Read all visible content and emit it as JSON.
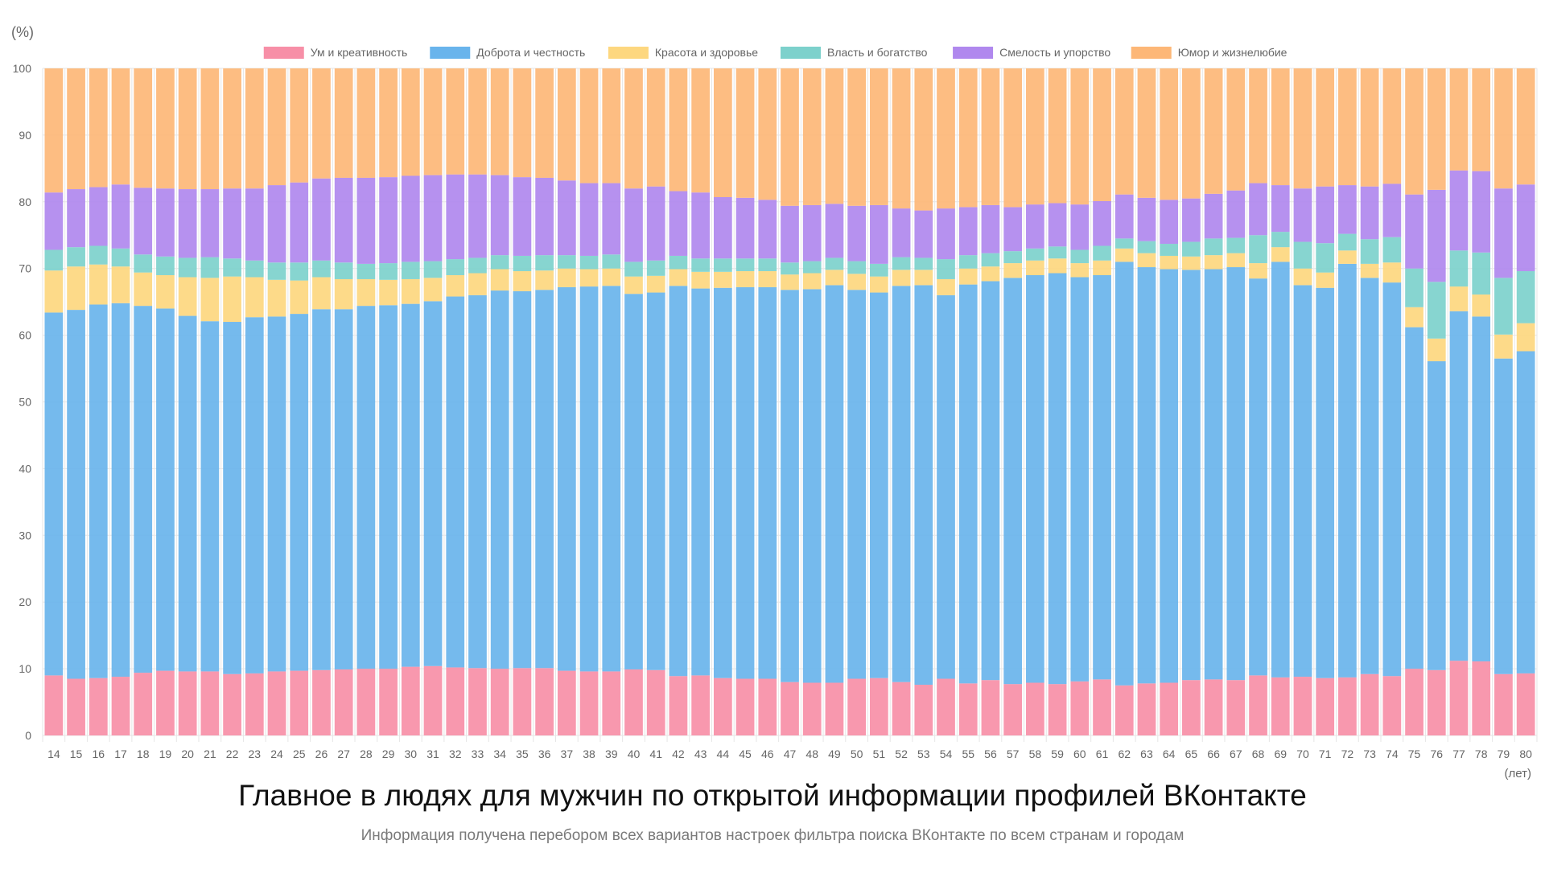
{
  "chart_data": {
    "type": "bar",
    "stacked": true,
    "title": "Главное в людях для мужчин по открытой информации профилей ВКонтакте",
    "subtitle": "Информация получена перебором всех вариантов настроек фильтра поиска ВКонтакте по всем странам и городам",
    "ylabel": "(%)",
    "xlabel": "(лет)",
    "ylim": [
      0,
      100
    ],
    "yticks": [
      0,
      10,
      20,
      30,
      40,
      50,
      60,
      70,
      80,
      90,
      100
    ],
    "grid": true,
    "legend_position": "top",
    "categories": [
      "14",
      "15",
      "16",
      "17",
      "18",
      "19",
      "20",
      "21",
      "22",
      "23",
      "24",
      "25",
      "26",
      "27",
      "28",
      "29",
      "30",
      "31",
      "32",
      "33",
      "34",
      "35",
      "36",
      "37",
      "38",
      "39",
      "40",
      "41",
      "42",
      "43",
      "44",
      "45",
      "46",
      "47",
      "48",
      "49",
      "50",
      "51",
      "52",
      "53",
      "54",
      "55",
      "56",
      "57",
      "58",
      "59",
      "60",
      "61",
      "62",
      "63",
      "64",
      "65",
      "66",
      "67",
      "68",
      "69",
      "70",
      "71",
      "72",
      "73",
      "74",
      "75",
      "76",
      "77",
      "78",
      "79",
      "80"
    ],
    "series": [
      {
        "name": "Ум и креативность",
        "color": "#f78fa7",
        "values": [
          9.0,
          8.5,
          8.6,
          8.8,
          9.4,
          9.7,
          9.6,
          9.6,
          9.2,
          9.3,
          9.6,
          9.7,
          9.8,
          9.9,
          10.0,
          10.0,
          10.3,
          10.4,
          10.2,
          10.1,
          10.0,
          10.1,
          10.1,
          9.7,
          9.6,
          9.6,
          9.9,
          9.8,
          8.9,
          9.0,
          8.6,
          8.5,
          8.5,
          8.0,
          7.9,
          7.9,
          8.5,
          8.6,
          8.0,
          7.6,
          8.5,
          7.8,
          8.3,
          7.7,
          7.9,
          7.7,
          8.1,
          8.4,
          7.5,
          7.8,
          7.9,
          8.3,
          8.4,
          8.3,
          9.0,
          8.7,
          8.8,
          8.6,
          8.7,
          9.2,
          8.9,
          10.0,
          9.8,
          11.2,
          11.1,
          9.2,
          9.3
        ]
      },
      {
        "name": "Доброта и честность",
        "color": "#69b4ec",
        "values": [
          54.4,
          55.3,
          56.0,
          56.0,
          55.0,
          54.3,
          53.3,
          52.5,
          52.8,
          53.4,
          53.2,
          53.5,
          54.1,
          54.0,
          54.4,
          54.5,
          54.4,
          54.7,
          55.6,
          55.9,
          56.7,
          56.5,
          56.7,
          57.5,
          57.7,
          57.8,
          56.3,
          56.6,
          58.5,
          58.0,
          58.5,
          58.7,
          58.7,
          58.8,
          59.0,
          59.6,
          58.3,
          57.8,
          59.4,
          59.9,
          57.5,
          59.8,
          59.8,
          60.9,
          61.1,
          61.6,
          60.6,
          60.6,
          63.5,
          62.4,
          62.0,
          61.5,
          61.5,
          61.9,
          59.5,
          62.3,
          58.7,
          58.5,
          62.0,
          59.4,
          59.0,
          51.2,
          46.3,
          52.4,
          51.7,
          47.3,
          48.3
        ]
      },
      {
        "name": "Красота и здоровье",
        "color": "#fdd77f",
        "values": [
          6.3,
          6.5,
          6.0,
          5.5,
          5.0,
          5.0,
          5.8,
          6.5,
          6.8,
          6.0,
          5.5,
          5.0,
          4.8,
          4.5,
          4.0,
          3.8,
          3.7,
          3.5,
          3.2,
          3.3,
          3.2,
          3.0,
          2.9,
          2.8,
          2.6,
          2.6,
          2.6,
          2.5,
          2.5,
          2.5,
          2.4,
          2.4,
          2.4,
          2.3,
          2.4,
          2.3,
          2.4,
          2.4,
          2.4,
          2.3,
          2.4,
          2.4,
          2.2,
          2.2,
          2.2,
          2.2,
          2.1,
          2.2,
          2.0,
          2.1,
          2.0,
          2.0,
          2.1,
          2.1,
          2.3,
          2.2,
          2.5,
          2.3,
          2.0,
          2.1,
          3.0,
          3.0,
          3.4,
          3.7,
          3.3,
          3.6,
          4.2
        ]
      },
      {
        "name": "Власть и богатство",
        "color": "#7dd1cc",
        "values": [
          3.1,
          2.9,
          2.8,
          2.7,
          2.7,
          2.8,
          2.9,
          3.1,
          2.7,
          2.5,
          2.6,
          2.7,
          2.5,
          2.5,
          2.3,
          2.5,
          2.6,
          2.5,
          2.4,
          2.3,
          2.1,
          2.3,
          2.3,
          2.0,
          2.0,
          2.1,
          2.2,
          2.3,
          2.0,
          2.0,
          2.0,
          1.9,
          1.9,
          1.8,
          1.8,
          1.8,
          1.9,
          1.9,
          1.9,
          1.8,
          3.0,
          2.0,
          2.0,
          1.8,
          1.8,
          1.8,
          2.0,
          2.2,
          1.5,
          1.8,
          1.8,
          2.2,
          2.5,
          2.3,
          4.2,
          2.3,
          4.0,
          4.4,
          2.5,
          3.7,
          3.8,
          5.8,
          8.5,
          5.4,
          6.3,
          8.5,
          7.8
        ]
      },
      {
        "name": "Смелость и упорство",
        "color": "#b088ee",
        "values": [
          8.6,
          8.7,
          8.8,
          9.6,
          10.0,
          10.2,
          10.3,
          10.2,
          10.5,
          10.8,
          11.6,
          12.0,
          12.3,
          12.7,
          12.9,
          12.9,
          12.9,
          12.9,
          12.7,
          12.5,
          12.0,
          11.8,
          11.6,
          11.2,
          10.9,
          10.7,
          11.0,
          11.1,
          9.7,
          9.9,
          9.2,
          9.1,
          8.8,
          8.5,
          8.4,
          8.1,
          8.3,
          8.8,
          7.3,
          7.1,
          7.6,
          7.2,
          7.2,
          6.6,
          6.6,
          6.5,
          6.8,
          6.7,
          6.6,
          6.5,
          6.6,
          6.5,
          6.7,
          7.1,
          7.8,
          7.0,
          8.0,
          8.5,
          7.3,
          7.9,
          8.0,
          11.1,
          13.8,
          12.0,
          12.2,
          13.4,
          13.0
        ]
      },
      {
        "name": "Юмор и жизнелюбие",
        "color": "#fdb777",
        "values": [
          18.6,
          18.1,
          17.8,
          17.4,
          17.9,
          18.0,
          18.1,
          18.1,
          18.0,
          18.0,
          17.5,
          17.1,
          16.5,
          16.4,
          16.4,
          16.3,
          16.1,
          16.0,
          15.9,
          15.9,
          16.0,
          16.3,
          16.4,
          16.8,
          17.2,
          17.2,
          18.0,
          17.7,
          18.4,
          18.6,
          19.3,
          19.4,
          19.7,
          20.6,
          20.5,
          20.3,
          20.6,
          20.5,
          21.0,
          21.3,
          21.0,
          20.8,
          20.5,
          20.8,
          20.4,
          20.2,
          20.4,
          19.9,
          18.9,
          19.4,
          19.7,
          19.5,
          18.8,
          18.3,
          17.2,
          17.5,
          18.0,
          17.7,
          17.5,
          17.7,
          17.3,
          18.9,
          18.2,
          15.3,
          15.4,
          18.0,
          17.4
        ]
      }
    ]
  }
}
